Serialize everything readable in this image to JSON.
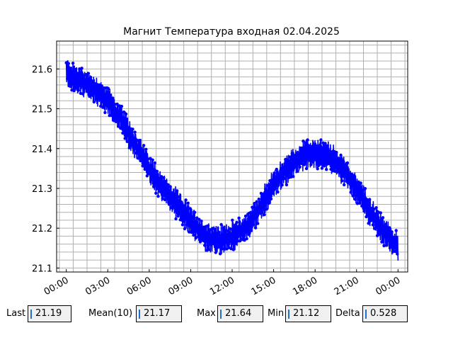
{
  "chart_data": {
    "type": "line",
    "title": "Магнит Температура входная 02.04.2025",
    "xlabel": "",
    "ylabel": "",
    "x_tick_labels": [
      "00:00",
      "03:00",
      "06:00",
      "09:00",
      "12:00",
      "15:00",
      "18:00",
      "21:00",
      "00:00"
    ],
    "y_tick_labels": [
      "21.1",
      "21.2",
      "21.3",
      "21.4",
      "21.5",
      "21.6"
    ],
    "xlim_hours": [
      -0.7,
      24.7
    ],
    "ylim": [
      21.09,
      21.67
    ],
    "grid": true,
    "marker": "circle",
    "line_color": "#0000ff",
    "trend_hours": [
      0,
      1,
      2,
      3,
      4,
      5,
      6,
      7,
      8,
      9,
      10,
      11,
      12,
      13,
      14,
      15,
      16,
      17,
      18,
      19,
      20,
      21,
      22,
      23,
      24
    ],
    "trend_values": [
      21.59,
      21.57,
      21.55,
      21.52,
      21.47,
      21.41,
      21.35,
      21.3,
      21.26,
      21.22,
      21.18,
      21.17,
      21.18,
      21.2,
      21.25,
      21.31,
      21.35,
      21.38,
      21.39,
      21.38,
      21.35,
      21.3,
      21.24,
      21.19,
      21.15
    ],
    "noise_amplitude": 0.035
  },
  "stats": {
    "last_label": "Last",
    "last_value": "21.19",
    "mean_label": "Mean(10)",
    "mean_value": "21.17",
    "max_label": "Max",
    "max_value": "21.64",
    "min_label": "Min",
    "min_value": "21.12",
    "delta_label": "Delta",
    "delta_value": "0.528"
  }
}
